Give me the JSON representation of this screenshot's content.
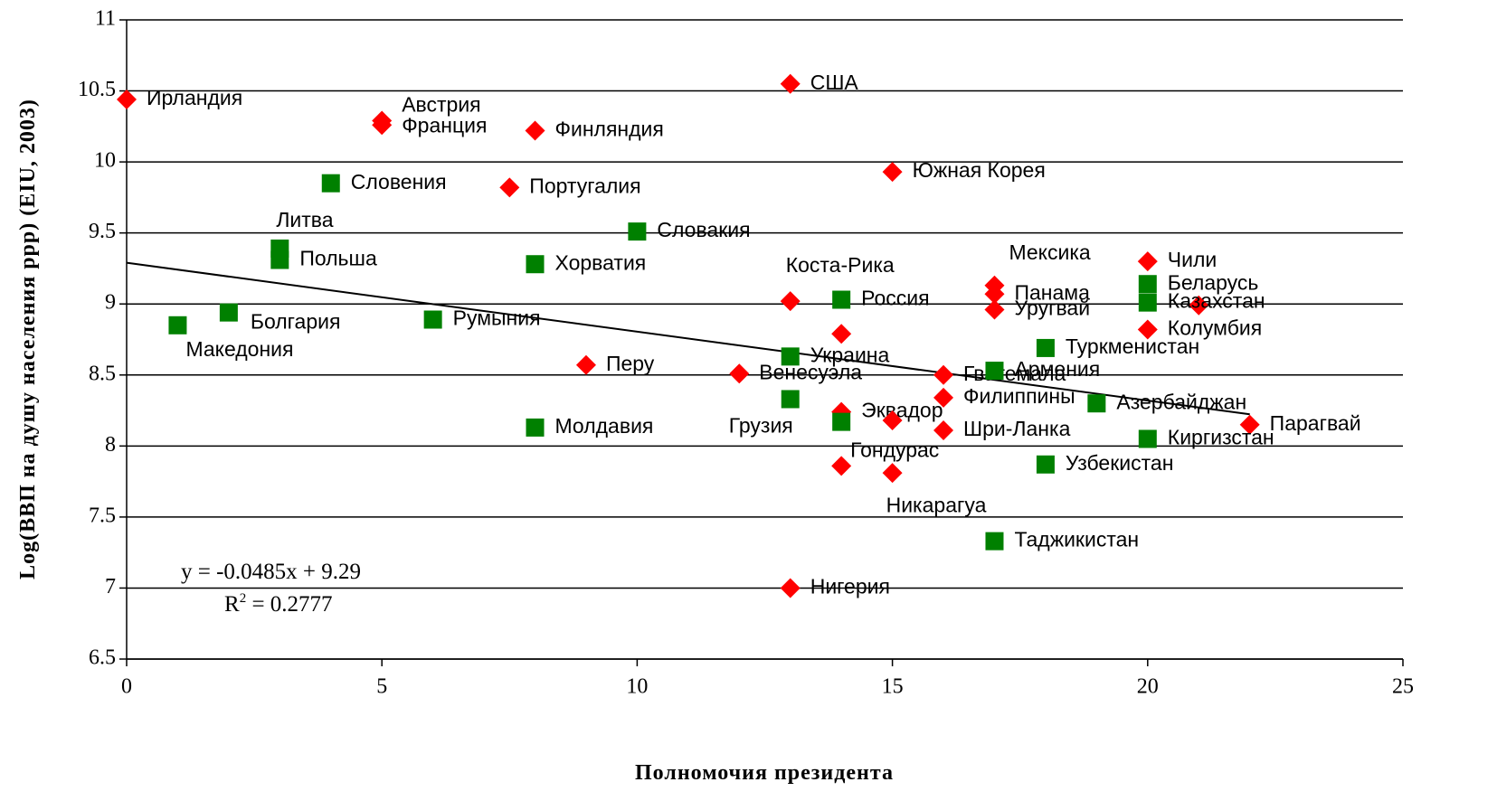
{
  "chart_data": {
    "type": "scatter",
    "xlabel": "Полномочия президента",
    "ylabel": "Log(ВВП на душу населения ppp) (EIU, 2003)",
    "xlim": [
      0,
      25
    ],
    "xticks": [
      0,
      5,
      10,
      15,
      20,
      25
    ],
    "ylim": [
      6.5,
      11
    ],
    "yticks": [
      6.5,
      7,
      7.5,
      8,
      8.5,
      9,
      9.5,
      10,
      10.5,
      11
    ],
    "grid": true,
    "series": [
      {
        "color": "#ff0000",
        "marker": "diamond",
        "x": [
          0,
          5,
          5,
          8,
          13,
          7.5,
          15,
          13,
          17,
          17,
          17,
          20,
          21,
          20,
          14,
          9,
          12,
          16,
          16,
          14,
          15,
          16,
          14,
          15,
          22,
          13
        ],
        "values": [
          10.44,
          10.29,
          10.26,
          10.22,
          10.55,
          9.82,
          9.93,
          9.02,
          9.13,
          9.07,
          8.96,
          9.3,
          8.99,
          8.82,
          8.79,
          8.57,
          8.51,
          8.5,
          8.34,
          8.24,
          8.18,
          8.11,
          7.86,
          7.81,
          8.15,
          7.0
        ],
        "labels": [
          "Ирландия",
          "Австрия",
          "Франция",
          "Финляндия",
          "США",
          "Португалия",
          "Южная Корея",
          "Коста-Рика",
          "Мексика",
          "Панама",
          "Уругвай",
          "Чили",
          null,
          "Колумбия",
          null,
          "Перу",
          "Венесуэла",
          "Гватемала",
          "Филиппины",
          "Эквадор",
          null,
          "Шри-Ланка",
          "Гондурас",
          "Никарагуа",
          "Парагвай",
          "Нигерия"
        ]
      },
      {
        "color": "#008000",
        "marker": "square",
        "x": [
          4,
          3,
          3,
          10,
          8,
          1,
          2,
          6,
          14,
          13,
          13,
          8,
          14,
          17,
          18,
          19,
          20,
          20,
          20,
          18,
          17
        ],
        "values": [
          9.85,
          9.39,
          9.31,
          9.51,
          9.28,
          8.85,
          8.94,
          8.89,
          9.03,
          8.63,
          8.33,
          8.13,
          8.17,
          8.53,
          8.69,
          8.3,
          9.14,
          9.01,
          8.05,
          7.87,
          7.33
        ],
        "labels": [
          "Словения",
          "Литва",
          "Польша",
          "Словакия",
          "Хорватия",
          "Македония",
          "Болгария",
          "Румыния",
          "Россия",
          "Украина",
          "Грузия",
          "Молдавия",
          null,
          "Армения",
          "Туркменистан",
          "Азербайджан",
          "Беларусь",
          "Казахстан",
          "Киргизстан",
          "Узбекистан",
          "Таджикистан"
        ]
      }
    ],
    "trendline": {
      "slope": -0.0485,
      "intercept": 9.29,
      "x_range": [
        0,
        22
      ],
      "color": "#000000"
    },
    "equation": "y = -0.0485x + 9.29",
    "r2_parts": [
      "R",
      "2",
      " = 0.2777"
    ]
  }
}
